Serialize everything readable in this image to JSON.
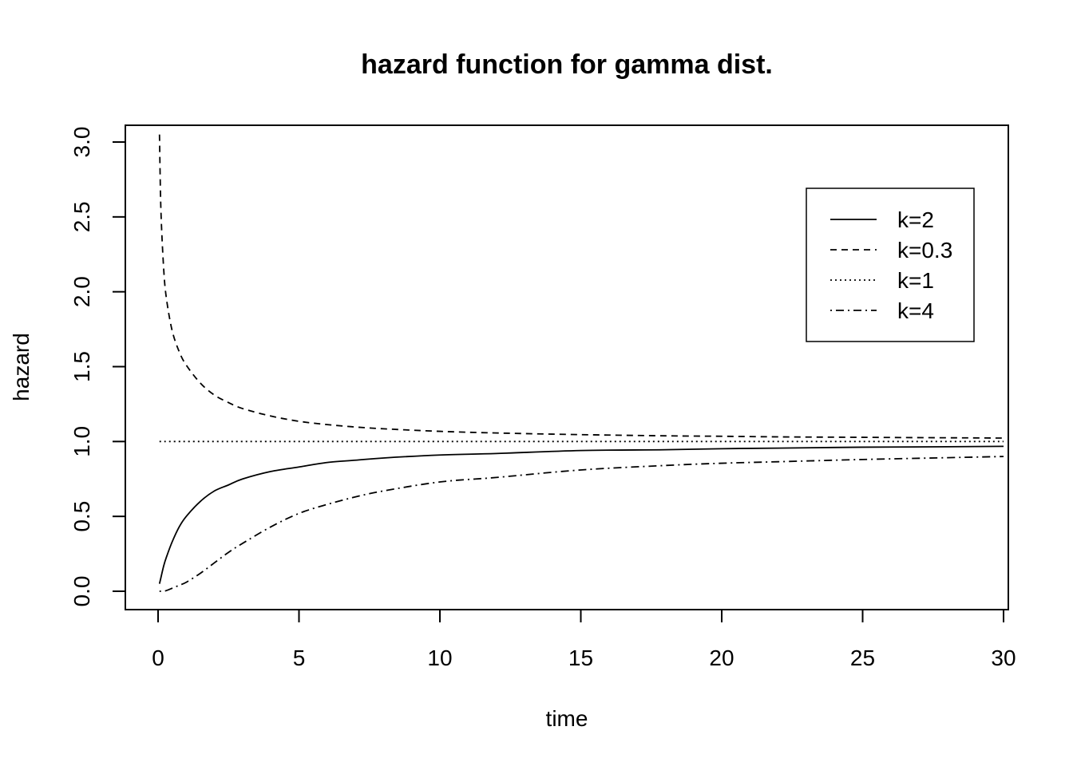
{
  "chart_data": {
    "type": "line",
    "title": "hazard function for gamma dist.",
    "xlabel": "time",
    "ylabel": "hazard",
    "xlim": [
      0,
      30
    ],
    "ylim": [
      0,
      3
    ],
    "x_ticks": [
      0,
      5,
      10,
      15,
      20,
      25,
      30
    ],
    "y_ticks": [
      0.0,
      0.5,
      1.0,
      1.5,
      2.0,
      2.5,
      3.0
    ],
    "x_tick_labels": [
      "0",
      "5",
      "10",
      "15",
      "20",
      "25",
      "30"
    ],
    "y_tick_labels": [
      "0.0",
      "0.5",
      "1.0",
      "1.5",
      "2.0",
      "2.5",
      "3.0"
    ],
    "legend_position": "top-right",
    "grid": false,
    "x": [
      0.05,
      0.1,
      0.2,
      0.3,
      0.5,
      0.75,
      1,
      1.5,
      2,
      2.5,
      3,
      4,
      5,
      6,
      7,
      8,
      10,
      12,
      15,
      18,
      20,
      22,
      25,
      28,
      30
    ],
    "series": [
      {
        "name": "k=2",
        "line_style": "solid",
        "values": [
          0.05,
          0.09,
          0.17,
          0.23,
          0.33,
          0.43,
          0.5,
          0.6,
          0.67,
          0.71,
          0.75,
          0.8,
          0.83,
          0.86,
          0.875,
          0.89,
          0.91,
          0.92,
          0.94,
          0.945,
          0.952,
          0.956,
          0.962,
          0.965,
          0.968
        ]
      },
      {
        "name": "k=0.3",
        "line_style": "dashed",
        "values": [
          3.05,
          2.55,
          2.15,
          1.95,
          1.74,
          1.6,
          1.51,
          1.39,
          1.31,
          1.26,
          1.22,
          1.17,
          1.135,
          1.113,
          1.097,
          1.085,
          1.068,
          1.057,
          1.046,
          1.038,
          1.035,
          1.031,
          1.028,
          1.025,
          1.023
        ]
      },
      {
        "name": "k=1",
        "line_style": "dotted",
        "values": [
          1,
          1,
          1,
          1,
          1,
          1,
          1,
          1,
          1,
          1,
          1,
          1,
          1,
          1,
          1,
          1,
          1,
          1,
          1,
          1,
          1,
          1,
          1,
          1,
          1
        ]
      },
      {
        "name": "k=4",
        "line_style": "dotdash",
        "values": [
          0.0,
          0.0,
          0.0,
          0.005,
          0.02,
          0.04,
          0.06,
          0.12,
          0.19,
          0.26,
          0.32,
          0.43,
          0.52,
          0.58,
          0.63,
          0.67,
          0.73,
          0.76,
          0.81,
          0.84,
          0.855,
          0.865,
          0.88,
          0.892,
          0.9
        ]
      }
    ]
  }
}
